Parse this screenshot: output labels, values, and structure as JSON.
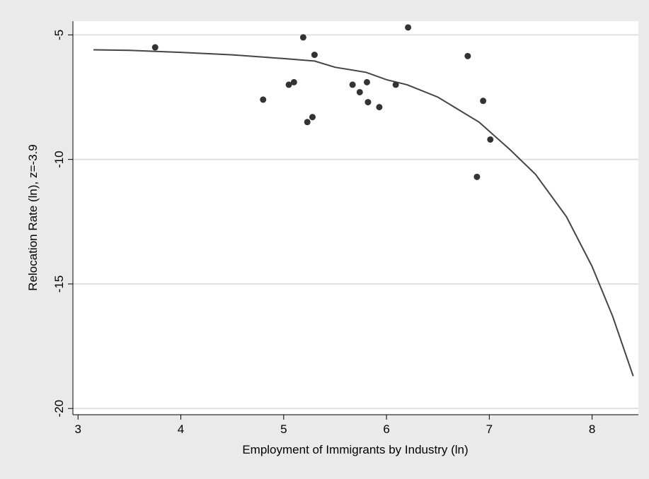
{
  "chart_data": {
    "type": "scatter",
    "xlabel": "Employment of Immigrants by Industry (ln)",
    "ylabel": "Relocation Rate (ln), z=-3.9",
    "xlim": [
      2.95,
      8.45
    ],
    "ylim": [
      -20.25,
      -4.45
    ],
    "xticks": [
      3,
      4,
      5,
      6,
      7,
      8
    ],
    "yticks": [
      -5,
      -10,
      -15,
      -20
    ],
    "grid": "horizontal",
    "colors": {
      "background": "#eaeaea",
      "plot_area": "#ffffff",
      "points": "#333333",
      "line": "#444444",
      "grid": "#e0e0e0"
    },
    "series": [
      {
        "type": "scatter",
        "points": [
          [
            3.75,
            -5.5
          ],
          [
            4.8,
            -7.6
          ],
          [
            5.05,
            -7.0
          ],
          [
            5.1,
            -6.9
          ],
          [
            5.19,
            -5.1
          ],
          [
            5.23,
            -8.5
          ],
          [
            5.28,
            -8.3
          ],
          [
            5.3,
            -5.8
          ],
          [
            5.67,
            -7.0
          ],
          [
            5.74,
            -7.3
          ],
          [
            5.81,
            -6.9
          ],
          [
            5.82,
            -7.7
          ],
          [
            5.93,
            -7.9
          ],
          [
            6.09,
            -7.0
          ],
          [
            6.21,
            -4.7
          ],
          [
            6.79,
            -5.85
          ],
          [
            6.88,
            -10.7
          ],
          [
            6.94,
            -7.65
          ],
          [
            7.01,
            -9.2
          ]
        ]
      },
      {
        "type": "line",
        "points": [
          [
            3.15,
            -5.6
          ],
          [
            3.5,
            -5.62
          ],
          [
            4.0,
            -5.7
          ],
          [
            4.5,
            -5.8
          ],
          [
            5.0,
            -5.95
          ],
          [
            5.3,
            -6.05
          ],
          [
            5.5,
            -6.3
          ],
          [
            5.8,
            -6.5
          ],
          [
            6.0,
            -6.8
          ],
          [
            6.2,
            -7.0
          ],
          [
            6.5,
            -7.5
          ],
          [
            6.9,
            -8.5
          ],
          [
            7.2,
            -9.6
          ],
          [
            7.45,
            -10.6
          ],
          [
            7.75,
            -12.3
          ],
          [
            8.0,
            -14.3
          ],
          [
            8.2,
            -16.3
          ],
          [
            8.4,
            -18.7
          ]
        ]
      }
    ]
  }
}
